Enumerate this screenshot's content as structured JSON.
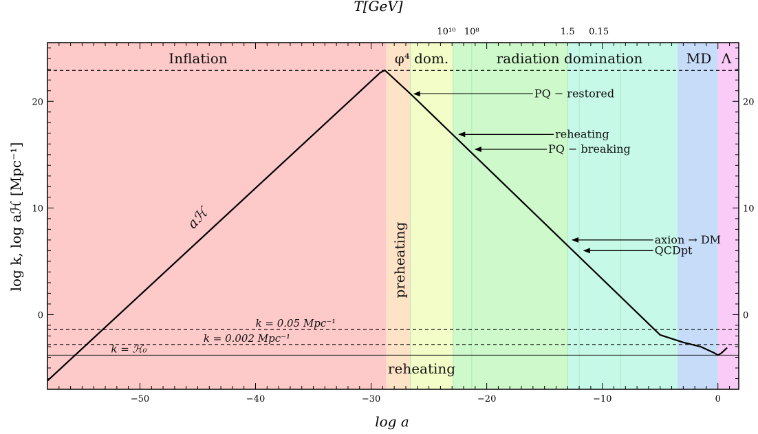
{
  "chart_data": {
    "type": "line",
    "xlabel": "log a",
    "ylabel": "log k, log aℋ [Mpc⁻¹]",
    "top_axis_label": "T[GeV]",
    "xlim": [
      -58,
      1.8
    ],
    "ylim": [
      -7,
      25.5
    ],
    "x_ticks": [
      -50,
      -40,
      -30,
      -20,
      -10,
      0
    ],
    "x_tick_labels": [
      "−50",
      "−40",
      "−30",
      "−20",
      "−10",
      "0"
    ],
    "y_ticks": [
      0,
      10,
      20
    ],
    "y_tick_labels": [
      "0",
      "10",
      "20"
    ],
    "top_ticks": [
      {
        "label": "10¹⁰",
        "x": -23.5
      },
      {
        "label": "10⁸",
        "x": -21.3
      },
      {
        "label": "1.5",
        "x": -13.0
      },
      {
        "label": "0.15",
        "x": -10.3
      }
    ],
    "regions": [
      {
        "name": "Inflation",
        "x0": -58,
        "x1": -28.7,
        "color": "#fec9c9"
      },
      {
        "name": "preheating",
        "x0": -28.7,
        "x1": -26.6,
        "color": "#fee3c7"
      },
      {
        "name": "φ⁴ dom.",
        "x0": -26.6,
        "x1": -22.9,
        "color": "#f2fdc8"
      },
      {
        "name": "radiation domination",
        "x0": -22.9,
        "x1": -13.0,
        "color": "#cdf9cb"
      },
      {
        "name": "radiation domination",
        "x0": -13.0,
        "x1": -3.5,
        "color": "#c6f9e8"
      },
      {
        "name": "MD",
        "x0": -3.5,
        "x1": 0,
        "color": "#c6dcf9"
      },
      {
        "name": "Λ",
        "x0": 0,
        "x1": 1.8,
        "color": "#fbcbf7"
      }
    ],
    "region_lines": [
      -26.6,
      -22.9,
      -21.3,
      -13.0,
      -12.0,
      -8.4
    ],
    "series": [
      {
        "name": "aℋ",
        "x": [
          -58,
          -29.2,
          -28.8,
          -28.5,
          -26.5,
          -5.0,
          -3.0,
          -1.5,
          -0.3,
          0.0,
          0.3,
          0.8
        ],
        "y": [
          -6.2,
          22.7,
          22.9,
          22.6,
          20.6,
          -1.9,
          -2.6,
          -3.0,
          -3.6,
          -3.8,
          -3.6,
          -3.1
        ]
      }
    ],
    "horizontal_lines": [
      {
        "label": "",
        "y": 22.9,
        "style": "dashed"
      },
      {
        "label": "k = 0.05 Mpc⁻¹",
        "y": -1.4,
        "style": "dashed"
      },
      {
        "label": "k = 0.002 Mpc⁻¹",
        "y": -2.8,
        "style": "dashed"
      },
      {
        "label": "k = ℋ₀",
        "y": -3.8,
        "style": "solid"
      }
    ],
    "era_labels": [
      "Inflation",
      "φ⁴ dom.",
      "radiation domination",
      "MD",
      "Λ"
    ],
    "curve_label": "aℋ",
    "vertical_labels": [
      "preheating"
    ],
    "bottom_labels": [
      "reheating"
    ],
    "annotations": [
      {
        "label": "PQ − restored",
        "x": -26.3,
        "y": 20.7
      },
      {
        "label": "reheating",
        "x": -22.4,
        "y": 16.9
      },
      {
        "label": "PQ − breaking",
        "x": -21.0,
        "y": 15.5
      },
      {
        "label": "axion → DM",
        "x": -12.6,
        "y": 7.0
      },
      {
        "label": "QCDpt",
        "x": -11.6,
        "y": 6.0
      }
    ]
  }
}
